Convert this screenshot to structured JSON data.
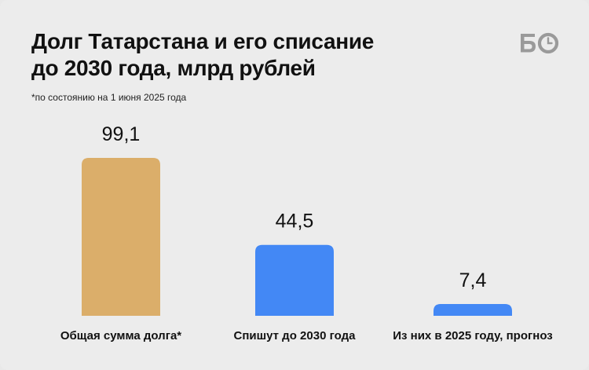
{
  "header": {
    "title_line1": "Долг Татарстана и его списание",
    "title_line2": "до 2030 года, млрд рублей",
    "note": "*по состоянию на 1 июня 2025 года"
  },
  "logo": {
    "icon": "bo-logo-icon",
    "text": "БО"
  },
  "chart_data": {
    "type": "bar",
    "title": "Долг Татарстана и его списание до 2030 года, млрд рублей",
    "subtitle": "*по состоянию на 1 июня 2025 года",
    "categories": [
      "Общая сумма долга*",
      "Спишут до 2030 года",
      "Из них в 2025 году, прогноз"
    ],
    "values": [
      99.1,
      44.5,
      7.4
    ],
    "value_labels": [
      "99,1",
      "44,5",
      "7,4"
    ],
    "colors": [
      "#dbae6a",
      "#4388f5",
      "#4388f5"
    ],
    "ylim": [
      0,
      99.1
    ],
    "grid": false,
    "xlabel": "",
    "ylabel": ""
  }
}
